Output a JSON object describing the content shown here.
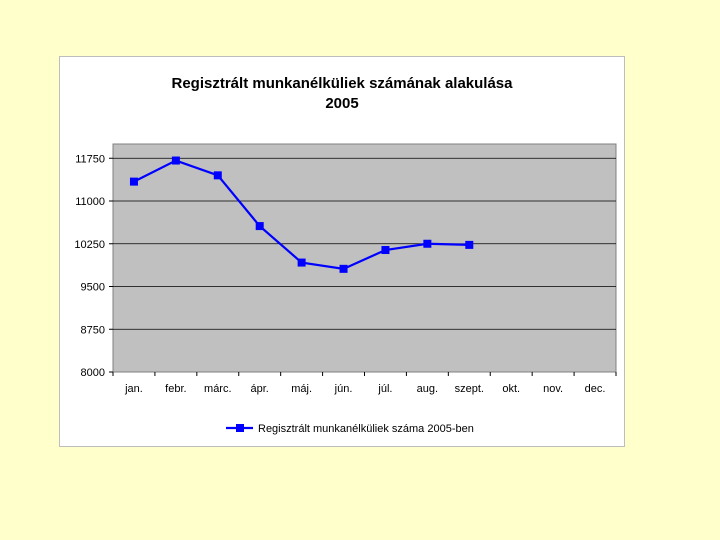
{
  "chart_data": {
    "type": "line",
    "title": "Regisztrált munkanélküliek számának alakulása",
    "subtitle": "2005",
    "categories": [
      "jan.",
      "febr.",
      "márc.",
      "ápr.",
      "máj.",
      "jún.",
      "júl.",
      "aug.",
      "szept.",
      "okt.",
      "nov.",
      "dec."
    ],
    "series": [
      {
        "name": "Regisztrált munkanélküliek száma 2005-ben",
        "values": [
          11340,
          11710,
          11450,
          10560,
          9920,
          9810,
          10140,
          10250,
          10230,
          null,
          null,
          null
        ],
        "color": "#0000ff"
      }
    ],
    "ylim": [
      8000,
      12000
    ],
    "yticks": [
      8000,
      8750,
      9500,
      10250,
      11000,
      11750
    ],
    "xlabel": "",
    "ylabel": "",
    "grid": true,
    "plot_background": "#c0c0c0",
    "legend_position": "bottom"
  }
}
